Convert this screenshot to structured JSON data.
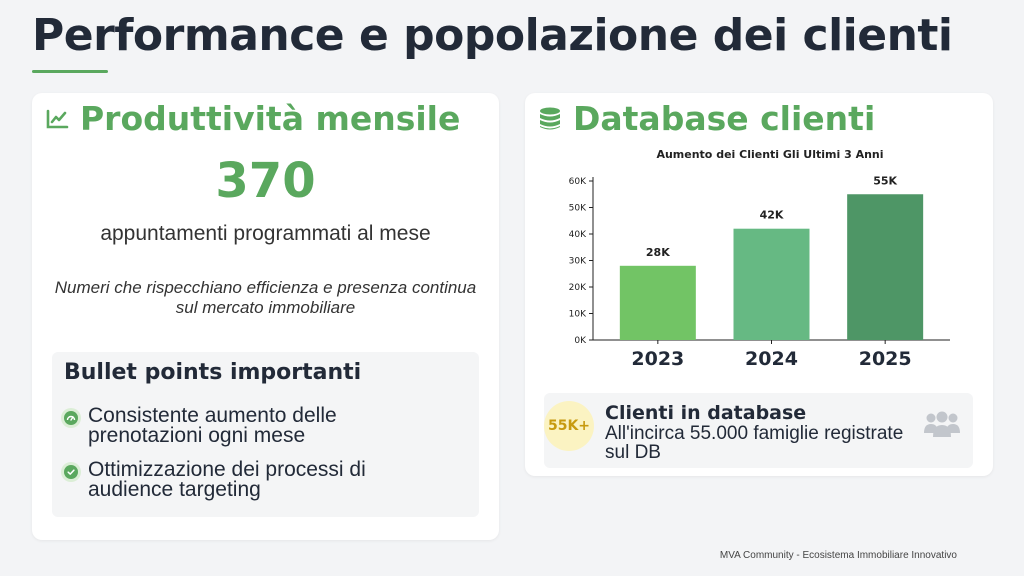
{
  "page": {
    "title": "Performance e popolazione dei clienti"
  },
  "left_card": {
    "heading": "Produttività mensile",
    "heading_icon": "chart-line-icon",
    "number": "370",
    "caption": "appuntamenti programmati al mese",
    "note": "Numeri che rispecchiano efficienza e presenza continua sul mercato immobiliare",
    "bullets": {
      "title": "Bullet points importanti",
      "items": [
        {
          "icon": "speedometer-icon",
          "text": "Consistente aumento delle prenotazioni ogni mese"
        },
        {
          "icon": "check-circle-icon",
          "text": "Ottimizzazione dei processi di audience targeting"
        }
      ]
    }
  },
  "right_card": {
    "heading": "Database clienti",
    "heading_icon": "database-icon",
    "db": {
      "badge": "55K+",
      "title": "Clienti in database",
      "desc": "All'incirca 55.000 famiglie registrate sul DB",
      "icon": "users-icon"
    }
  },
  "chart_data": {
    "type": "bar",
    "title": "Aumento dei Clienti Gli Ultimi 3 Anni",
    "categories": [
      "2023",
      "2024",
      "2025"
    ],
    "values": [
      28000,
      42000,
      55000
    ],
    "data_labels": [
      "28K",
      "42K",
      "55K"
    ],
    "yticks": [
      "0K",
      "10K",
      "20K",
      "30K",
      "40K",
      "50K",
      "60K"
    ],
    "ylim": [
      0,
      60000
    ],
    "colors": [
      "#72c465",
      "#66b983",
      "#4e9666"
    ],
    "grid": false,
    "legend": false
  },
  "footer": "MVA Community - Ecosistema Immobiliare Innovativo",
  "colors": {
    "accent": "#5aa85e",
    "title": "#222a38",
    "badge_bg": "#fbf3c2",
    "badge_text": "#c79a10"
  }
}
